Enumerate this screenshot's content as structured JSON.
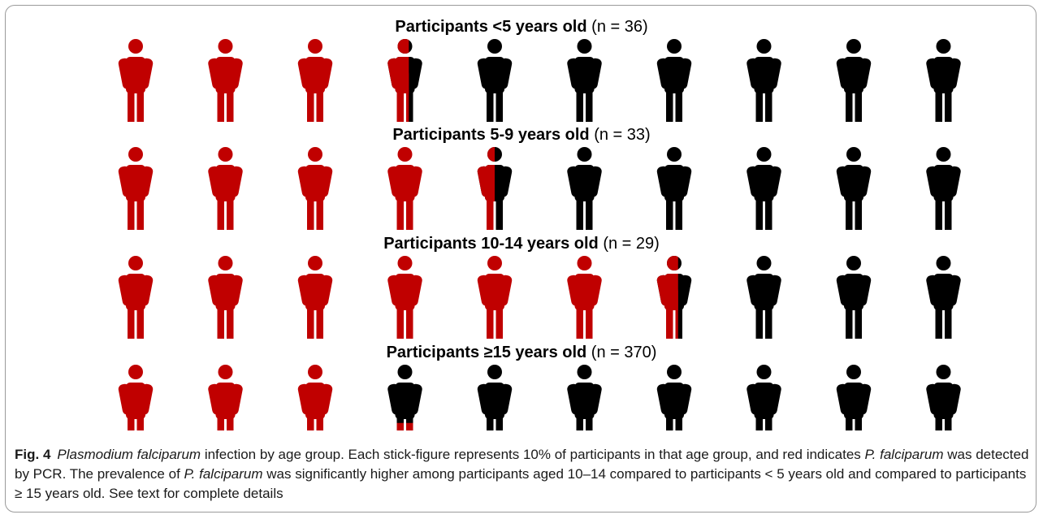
{
  "figure": {
    "caption": {
      "label": "Fig. 4",
      "part1_italic": "Plasmodium falciparum",
      "part2": " infection by age group. Each stick-figure represents 10% of participants in that age group, and red indicates ",
      "part3_italic": "P. falciparum",
      "part4": " was detected by PCR. The prevalence of ",
      "part5_italic": "P. falciparum",
      "part6": " was significantly higher among participants aged 10–14 compared to participants < 5 years old and compared to participants ≥ 15 years old. See text for complete details"
    }
  },
  "colors": {
    "positive": "#c00000",
    "negative": "#000000"
  },
  "chart_data": {
    "type": "icon_array",
    "unit": "Each stick-figure represents 10% of participants",
    "groups": [
      {
        "label": "Participants <5 years old",
        "n_text": "(n = 36)",
        "n": 36,
        "positive_fraction": 0.36
      },
      {
        "label": "Participants 5-9 years old",
        "n_text": "(n = 33)",
        "n": 33,
        "positive_fraction": 0.45
      },
      {
        "label": "Participants 10-14 years old",
        "n_text": "(n = 29)",
        "n": 29,
        "positive_fraction": 0.66
      },
      {
        "label": "Participants ≥15 years old",
        "n_text": "(n = 370)",
        "n": 370,
        "positive_fraction": 0.33
      }
    ],
    "icons_per_group": 10
  }
}
